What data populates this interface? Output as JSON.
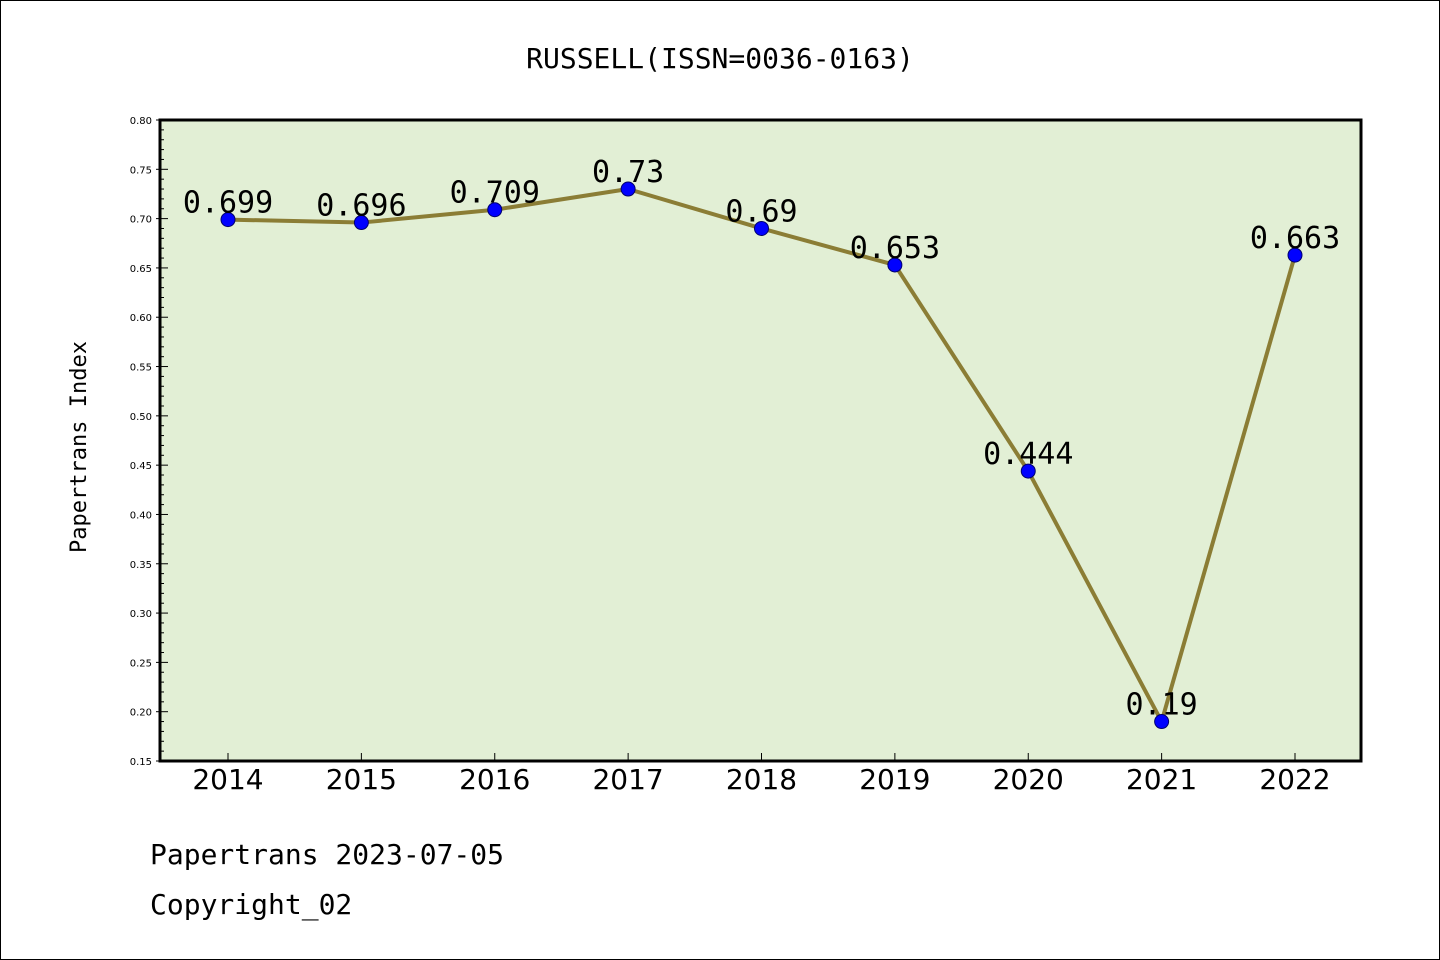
{
  "chart_data": {
    "type": "line",
    "title": "RUSSELL(ISSN=0036-0163)",
    "xlabel": "",
    "ylabel": "Papertrans Index",
    "categories": [
      "2014",
      "2015",
      "2016",
      "2017",
      "2018",
      "2019",
      "2020",
      "2021",
      "2022"
    ],
    "series": [
      {
        "values": [
          0.699,
          0.696,
          0.709,
          0.73,
          0.69,
          0.653,
          0.444,
          0.19,
          0.663
        ],
        "labels": [
          "0.699",
          "0.696",
          "0.709",
          "0.73",
          "0.69",
          "0.653",
          "0.444",
          "0.19",
          "0.663"
        ]
      }
    ],
    "ylim": [
      0.15,
      0.8
    ],
    "yticks": [
      "0.15",
      "0.20",
      "0.25",
      "0.30",
      "0.35",
      "0.40",
      "0.45",
      "0.50",
      "0.55",
      "0.60",
      "0.65",
      "0.70",
      "0.75",
      "0.80"
    ],
    "grid": false,
    "colors": {
      "plot_background": "#e2efd5",
      "line": "#8b7d35",
      "marker": "#0000ff"
    }
  },
  "footer": {
    "line1": "Papertrans 2023-07-05",
    "line2": "Copyright_02"
  }
}
